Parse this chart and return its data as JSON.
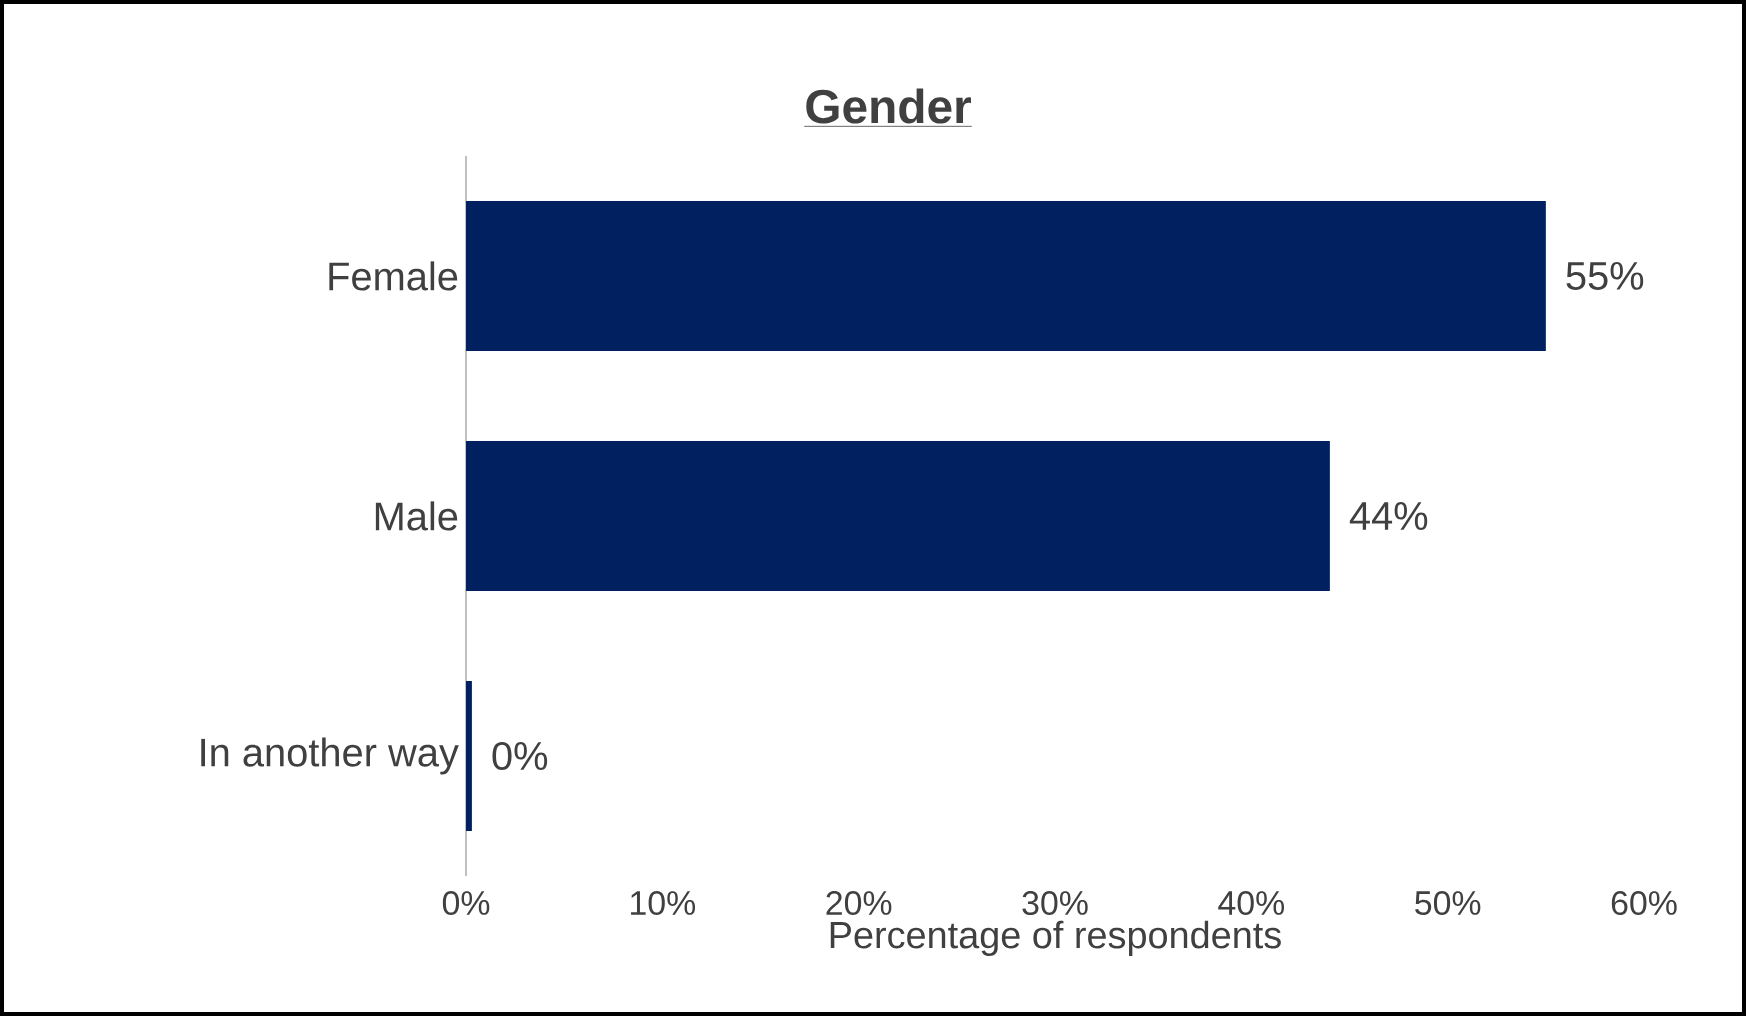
{
  "chart_data": {
    "type": "bar",
    "orientation": "horizontal",
    "title": "Gender",
    "xlabel": "Percentage of respondents",
    "categories": [
      "Female",
      "Male",
      "In another way"
    ],
    "values": [
      55,
      44,
      0.3
    ],
    "value_labels": [
      "55%",
      "44%",
      "0%"
    ],
    "color": "#002060",
    "xlim": [
      0,
      60
    ],
    "xticks": [
      {
        "value": 0,
        "label": "0%"
      },
      {
        "value": 10,
        "label": "10%"
      },
      {
        "value": 20,
        "label": "20%"
      },
      {
        "value": 30,
        "label": "30%"
      },
      {
        "value": 40,
        "label": "40%"
      },
      {
        "value": 50,
        "label": "50%"
      },
      {
        "value": 60,
        "label": "60%"
      }
    ],
    "grid": false
  }
}
